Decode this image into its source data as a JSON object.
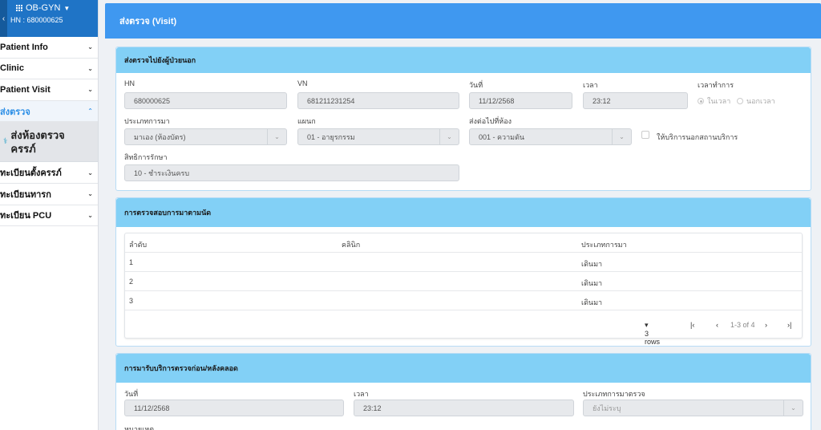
{
  "sidebar": {
    "back_icon": "chevron-left-icon",
    "app_name": "OB-GYN",
    "hn": "HN : 680000625",
    "items": [
      {
        "label": "Patient Info"
      },
      {
        "label": "Clinic"
      },
      {
        "label": "Patient Visit"
      },
      {
        "label": "ส่งตรวจ"
      },
      {
        "label": "ทะเบียนตั้งครรภ์"
      },
      {
        "label": "ทะเบียนทารก"
      },
      {
        "label": "ทะเบียน PCU"
      }
    ],
    "sub_item": {
      "line1": "ส่งห้องตรวจ",
      "line2": "ครรภ์"
    }
  },
  "header": {
    "title": "ส่งตรวจ (Visit)"
  },
  "opd": {
    "title": "ส่งตรวจไปยังผู้ป่วยนอก",
    "hn_label": "HN",
    "hn_value": "680000625",
    "vn_label": "VN",
    "vn_value": "681211231254",
    "date_label": "วันที่",
    "date_value": "11/12/2568",
    "time_label": "เวลา",
    "time_value": "23:12",
    "worktime_label": "เวลาทำการ",
    "worktime_in": "ในเวลา",
    "worktime_out": "นอกเวลา",
    "arrival_label": "ประเภทการมา",
    "arrival_value": "มาเอง (ห้องบัตร)",
    "dept_label": "แผนก",
    "dept_value": "01 - อายุรกรรม",
    "room_label": "ส่งต่อไปที่ห้อง",
    "room_value": "001 - ความดัน",
    "outside_label": "ให้บริการนอกสถานบริการ",
    "right_label": "สิทธิการรักษา",
    "right_value": "10 - ชำระเงินครบ"
  },
  "appointment": {
    "title": "การตรวจสอบการมาตามนัด",
    "columns": [
      "ลำดับ",
      "คลินิก",
      "ประเภทการมา"
    ],
    "rows": [
      {
        "no": "1",
        "clinic": "",
        "type": "เดินมา"
      },
      {
        "no": "2",
        "clinic": "",
        "type": "เดินมา"
      },
      {
        "no": "3",
        "clinic": "",
        "type": "เดินมา"
      }
    ],
    "rows_per_page": "3 rows",
    "page_info": "1-3 of 4"
  },
  "anc": {
    "title": "การมารับบริการตรวจก่อน/หลังคลอด",
    "date_label": "วันที่",
    "date_value": "11/12/2568",
    "time_label": "เวลา",
    "time_value": "23:12",
    "type_label": "ประเภทการมาตรวจ",
    "type_value": "ยังไม่ระบุ",
    "note_label": "หมายเหตุ"
  },
  "colors": {
    "header": "#3f98f0",
    "section_head": "#82d0f6",
    "sidebar_head": "#1f74c6",
    "active": "#2d8fe6"
  }
}
